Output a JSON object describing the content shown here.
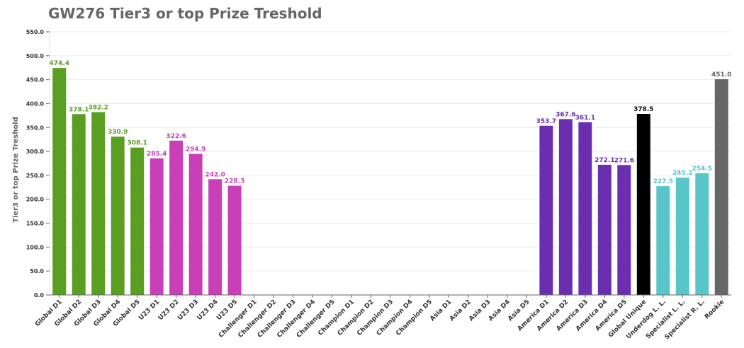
{
  "chart_data": {
    "type": "bar",
    "title": "GW276 Tier3 or top Prize Treshold",
    "ylabel": "Tier3 or top Prize Treshold",
    "xlabel": "",
    "ylim": [
      0,
      550
    ],
    "yticks": [
      "0.0",
      "50.0",
      "100.0",
      "150.0",
      "200.0",
      "250.0",
      "300.0",
      "350.0",
      "400.0",
      "450.0",
      "500.0",
      "550.0"
    ],
    "grid": "horizontal",
    "categories": [
      "Global D1",
      "Global D2",
      "Global D3",
      "Global D4",
      "Global D5",
      "U23 D1",
      "U23 D2",
      "U23 D3",
      "U23 D4",
      "U23 D5",
      "Challenger D1",
      "Challenger D2",
      "Challenger D3",
      "Challenger D4",
      "Challenger D5",
      "Champion D1",
      "Champion D2",
      "Champion D3",
      "Champion D4",
      "Champion D5",
      "Asia D1",
      "Asia D2",
      "Asia D3",
      "Asia D4",
      "Asia D5",
      "America D1",
      "America D2",
      "America D3",
      "America D4",
      "America D5",
      "Global Unique",
      "Underdog L. L.",
      "Specialist L. L.",
      "Specialist R. L.",
      "Rookie"
    ],
    "values": [
      474.4,
      378.1,
      382.2,
      330.9,
      308.1,
      285.4,
      322.6,
      294.9,
      242.0,
      228.3,
      null,
      null,
      null,
      null,
      null,
      null,
      null,
      null,
      null,
      null,
      null,
      null,
      null,
      null,
      null,
      353.7,
      367.6,
      361.1,
      272.1,
      271.6,
      378.5,
      227.5,
      245.2,
      254.5,
      451.0
    ],
    "value_labels": [
      "474.4",
      "378.1",
      "382.2",
      "330.9",
      "308.1",
      "285.4",
      "322.6",
      "294.9",
      "242.0",
      "228.3",
      "",
      "",
      "",
      "",
      "",
      "",
      "",
      "",
      "",
      "",
      "",
      "",
      "",
      "",
      "",
      "353.7",
      "367.6",
      "361.1",
      "272.1",
      "271.6",
      "378.5",
      "227.5",
      "245.2",
      "254.5",
      "451.0"
    ],
    "colors": [
      "#5a9e22",
      "#5a9e22",
      "#5a9e22",
      "#5a9e22",
      "#5a9e22",
      "#c83fb8",
      "#c83fb8",
      "#c83fb8",
      "#c83fb8",
      "#c83fb8",
      "#999999",
      "#999999",
      "#999999",
      "#999999",
      "#999999",
      "#999999",
      "#999999",
      "#999999",
      "#999999",
      "#999999",
      "#999999",
      "#999999",
      "#999999",
      "#999999",
      "#999999",
      "#6a2fb0",
      "#6a2fb0",
      "#6a2fb0",
      "#6a2fb0",
      "#6a2fb0",
      "#000000",
      "#58c6c8",
      "#58c6c8",
      "#58c6c8",
      "#666666"
    ],
    "label_colors": [
      "#5a9e22",
      "#5a9e22",
      "#5a9e22",
      "#5a9e22",
      "#5a9e22",
      "#c83fb8",
      "#c83fb8",
      "#c83fb8",
      "#c83fb8",
      "#c83fb8",
      "#999999",
      "#999999",
      "#999999",
      "#999999",
      "#999999",
      "#999999",
      "#999999",
      "#999999",
      "#999999",
      "#999999",
      "#999999",
      "#999999",
      "#999999",
      "#999999",
      "#999999",
      "#6a2fb0",
      "#6a2fb0",
      "#6a2fb0",
      "#6a2fb0",
      "#6a2fb0",
      "#111111",
      "#58c6c8",
      "#58c6c8",
      "#58c6c8",
      "#666666"
    ],
    "axis_color": "#666666",
    "gridline_color": "#ececec",
    "tick_label_color": "#333333"
  }
}
